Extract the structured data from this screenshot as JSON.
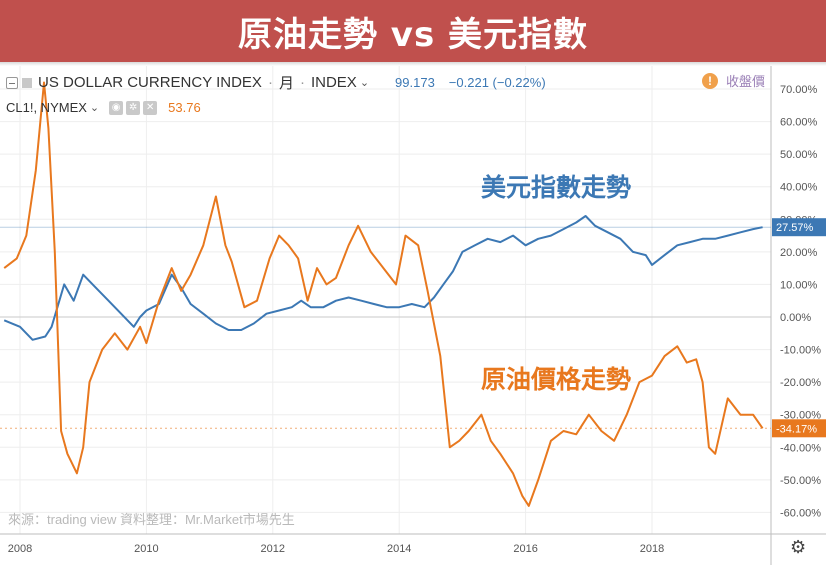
{
  "banner": {
    "title": "原油走勢 vs 美元指數"
  },
  "legend": {
    "usd": {
      "name": "US DOLLAR CURRENCY INDEX",
      "interval": "月",
      "exchange": "INDEX",
      "value": "99.173",
      "change": "−0.221 (−0.22%)"
    },
    "oil": {
      "symbol": "CL1!, NYMEX",
      "value": "53.76"
    }
  },
  "close_price_label": "收盤價",
  "annotations": {
    "usd": "美元指數走勢",
    "oil": "原油價格走勢"
  },
  "source_note": "來源：trading view 資料整理：Mr.Market市場先生",
  "colors": {
    "usd": "#3c78b4",
    "oil": "#e8781e",
    "banner": "#c0504d",
    "grid": "#eeeeee"
  },
  "icons": {
    "warning": "exclamation-circle-icon",
    "settings": "gear-icon"
  },
  "chart_data": {
    "type": "line",
    "x_label_ticks": [
      "2008",
      "2010",
      "2012",
      "2014",
      "2016",
      "2018"
    ],
    "x_tick_years": [
      2008,
      2010,
      2012,
      2014,
      2016,
      2018
    ],
    "xlim": [
      2007.75,
      2019.9
    ],
    "y_ticks": [
      70,
      60,
      50,
      40,
      30,
      20,
      10,
      0,
      -10,
      -20,
      -30,
      -40,
      -50,
      -60
    ],
    "y_tick_labels": [
      "70.00%",
      "60.00%",
      "50.00%",
      "40.00%",
      "30.00%",
      "20.00%",
      "10.00%",
      "0.00%",
      "-10.00%",
      "-20.00%",
      "-30.00%",
      "-40.00%",
      "-50.00%",
      "-60.00%"
    ],
    "ylim": [
      -70,
      78
    ],
    "y_unit": "%",
    "grid": true,
    "series": [
      {
        "key": "usd",
        "color": "#3c78b4",
        "last_label": "27.57%",
        "x": [
          2007.75,
          2008.0,
          2008.2,
          2008.4,
          2008.5,
          2008.7,
          2008.85,
          2009.0,
          2009.2,
          2009.4,
          2009.6,
          2009.8,
          2009.9,
          2010.0,
          2010.2,
          2010.4,
          2010.55,
          2010.7,
          2010.9,
          2011.1,
          2011.3,
          2011.5,
          2011.7,
          2011.9,
          2012.1,
          2012.3,
          2012.45,
          2012.6,
          2012.8,
          2013.0,
          2013.2,
          2013.4,
          2013.6,
          2013.8,
          2014.0,
          2014.2,
          2014.4,
          2014.55,
          2014.7,
          2014.85,
          2015.0,
          2015.2,
          2015.4,
          2015.6,
          2015.8,
          2016.0,
          2016.2,
          2016.4,
          2016.6,
          2016.8,
          2016.95,
          2017.1,
          2017.3,
          2017.5,
          2017.7,
          2017.9,
          2018.0,
          2018.2,
          2018.4,
          2018.6,
          2018.8,
          2019.0,
          2019.2,
          2019.4,
          2019.6,
          2019.75
        ],
        "y": [
          -1,
          -3,
          -7,
          -6,
          -3,
          10,
          5,
          13,
          9,
          5,
          1,
          -3,
          0,
          2,
          4,
          13,
          9,
          4,
          1,
          -2,
          -4,
          -4,
          -2,
          1,
          2,
          3,
          5,
          3,
          3,
          5,
          6,
          5,
          4,
          3,
          3,
          4,
          3,
          6,
          10,
          14,
          20,
          22,
          24,
          23,
          25,
          22,
          24,
          25,
          27,
          29,
          31,
          28,
          26,
          24,
          20,
          19,
          16,
          19,
          22,
          23,
          24,
          24,
          25,
          26,
          27,
          27.57
        ]
      },
      {
        "key": "oil",
        "color": "#e8781e",
        "last_label": "-34.17%",
        "x": [
          2007.75,
          2007.95,
          2008.1,
          2008.25,
          2008.38,
          2008.45,
          2008.55,
          2008.65,
          2008.75,
          2008.9,
          2009.0,
          2009.1,
          2009.3,
          2009.5,
          2009.7,
          2009.9,
          2010.0,
          2010.2,
          2010.4,
          2010.55,
          2010.7,
          2010.9,
          2011.1,
          2011.25,
          2011.35,
          2011.55,
          2011.75,
          2011.95,
          2012.1,
          2012.25,
          2012.4,
          2012.55,
          2012.7,
          2012.85,
          2013.0,
          2013.2,
          2013.35,
          2013.55,
          2013.75,
          2013.95,
          2014.1,
          2014.3,
          2014.45,
          2014.65,
          2014.8,
          2014.95,
          2015.1,
          2015.3,
          2015.45,
          2015.6,
          2015.8,
          2015.95,
          2016.05,
          2016.2,
          2016.4,
          2016.6,
          2016.8,
          2017.0,
          2017.2,
          2017.4,
          2017.6,
          2017.8,
          2018.0,
          2018.2,
          2018.4,
          2018.55,
          2018.7,
          2018.8,
          2018.9,
          2019.0,
          2019.2,
          2019.4,
          2019.6,
          2019.75
        ],
        "y": [
          15,
          18,
          25,
          45,
          72,
          58,
          20,
          -35,
          -42,
          -48,
          -40,
          -20,
          -10,
          -5,
          -10,
          -3,
          -8,
          5,
          15,
          8,
          13,
          22,
          37,
          22,
          17,
          3,
          5,
          18,
          25,
          22,
          18,
          5,
          15,
          10,
          12,
          22,
          28,
          20,
          15,
          10,
          25,
          22,
          8,
          -12,
          -40,
          -38,
          -35,
          -30,
          -38,
          -42,
          -48,
          -55,
          -58,
          -50,
          -38,
          -35,
          -36,
          -30,
          -35,
          -38,
          -30,
          -20,
          -18,
          -12,
          -9,
          -14,
          -13,
          -20,
          -40,
          -42,
          -25,
          -30,
          -30,
          -34.17
        ]
      }
    ]
  }
}
